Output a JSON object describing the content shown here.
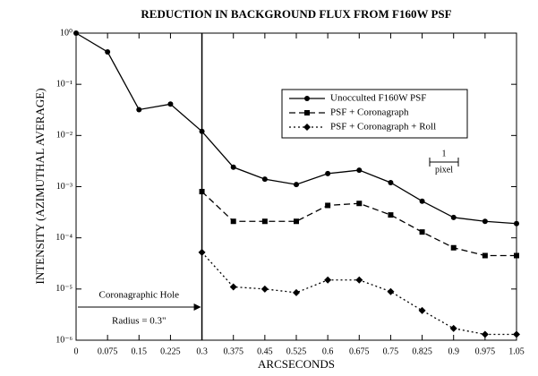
{
  "chart_data": {
    "type": "line",
    "title": "REDUCTION IN BACKGROUND FLUX FROM F160W PSF",
    "x_label": "ARCSECONDS",
    "y_label": "INTENSITY (AZIMUTHAL AVERAGE)",
    "log_y": true,
    "legend_position": "upper right",
    "x": [
      0,
      0.075,
      0.15,
      0.225,
      0.3,
      0.375,
      0.45,
      0.525,
      0.6,
      0.675,
      0.75,
      0.825,
      0.9,
      0.975,
      1.05
    ],
    "series": [
      {
        "name": "Unocculted F160W PSF",
        "color": "#000000",
        "marker": "circle",
        "dash": "solid",
        "values": [
          1.0,
          0.43,
          0.032,
          0.041,
          0.012,
          0.0024,
          0.0014,
          0.0011,
          0.0018,
          0.0021,
          0.0012,
          0.00052,
          0.00025,
          0.00021,
          0.00019
        ]
      },
      {
        "name": "PSF + Coronagraph",
        "color": "#000000",
        "marker": "square",
        "dash": "dashed",
        "values": [
          null,
          null,
          null,
          null,
          0.0008,
          0.00021,
          0.00021,
          0.00021,
          0.00043,
          0.00047,
          0.00028,
          0.00013,
          6.4e-05,
          4.5e-05,
          4.5e-05
        ]
      },
      {
        "name": "PSF + Coronagraph + Roll",
        "color": "#000000",
        "marker": "diamond",
        "dash": "dotted",
        "values": [
          null,
          null,
          null,
          null,
          5.2e-05,
          1.1e-05,
          1e-05,
          8.5e-06,
          1.5e-05,
          1.5e-05,
          8.9e-06,
          3.8e-06,
          1.7e-06,
          1.3e-06,
          1.3e-06
        ]
      }
    ],
    "xlim": [
      0,
      1.05
    ],
    "xticks": [
      0,
      0.075,
      0.15,
      0.225,
      0.3,
      0.375,
      0.45,
      0.525,
      0.6,
      0.675,
      0.75,
      0.825,
      0.9,
      0.975,
      1.05
    ],
    "ylim": [
      1e-06,
      1
    ],
    "yticks": [
      {
        "value": 1,
        "label": "10⁰"
      },
      {
        "value": 0.1,
        "label": "10⁻¹"
      },
      {
        "value": 0.01,
        "label": "10⁻²"
      },
      {
        "value": 0.001,
        "label": "10⁻³"
      },
      {
        "value": 0.0001,
        "label": "10⁻⁴"
      },
      {
        "value": 1e-05,
        "label": "10⁻⁵"
      },
      {
        "value": 1e-06,
        "label": "10⁻⁶"
      }
    ],
    "hole_radius": 0.3,
    "hole_label": "Coronagraphic Hole",
    "radius_label": "Radius = 0.3\"",
    "pixel_label": [
      "1",
      "pixel"
    ]
  }
}
